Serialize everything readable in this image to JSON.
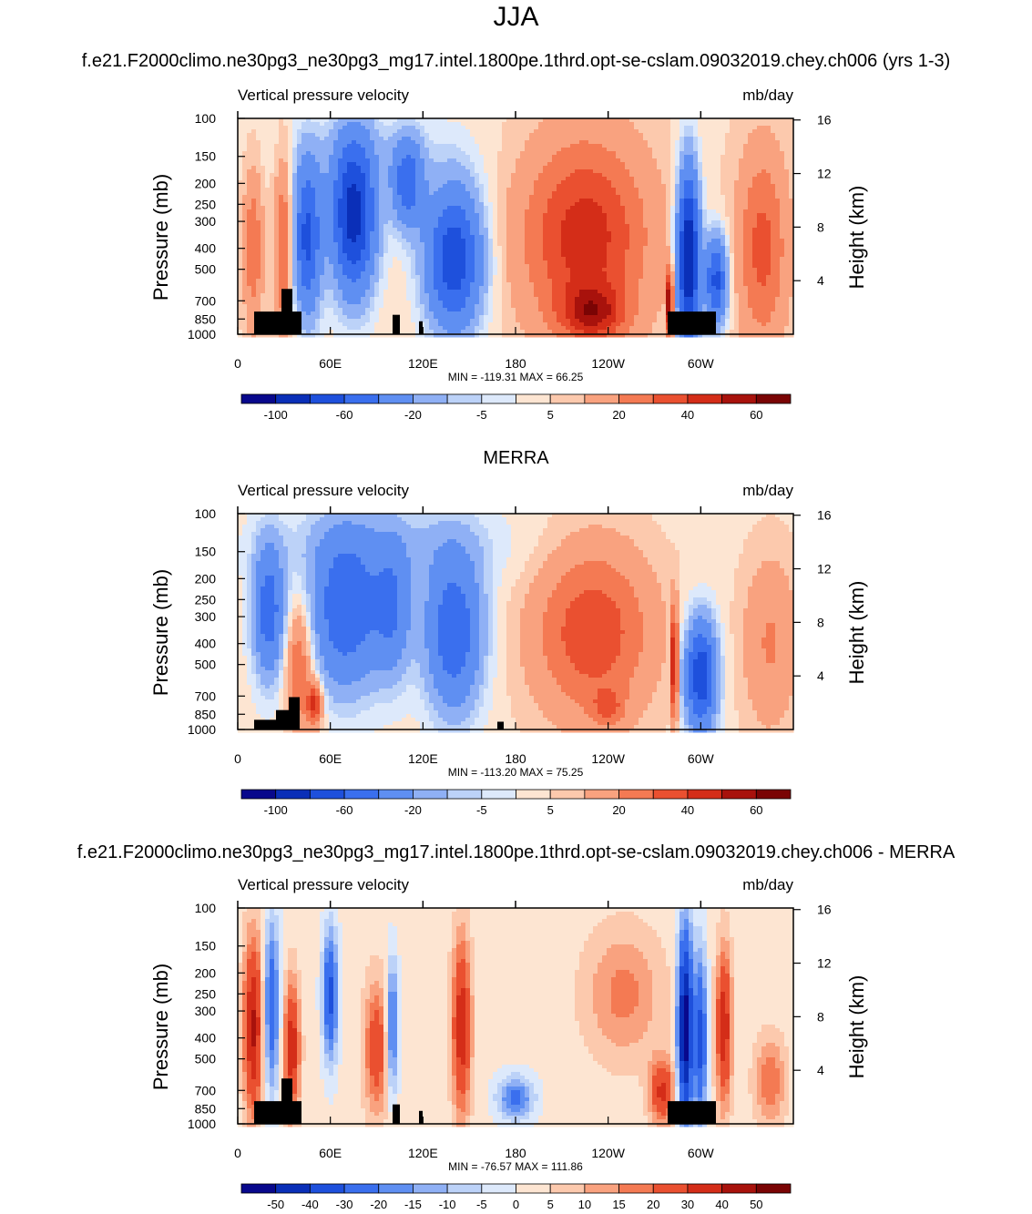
{
  "main_title": "JJA",
  "panel_titles": [
    "f.e21.F2000climo.ne30pg3_ne30pg3_mg17.intel.1800pe.1thrd.opt-se-cslam.09032019.chey.ch006 (yrs 1-3)",
    "MERRA",
    "f.e21.F2000climo.ne30pg3_ne30pg3_mg17.intel.1800pe.1thrd.opt-se-cslam.09032019.chey.ch006 - MERRA"
  ],
  "colors": {
    "model_scale": [
      "#08088c",
      "#0a2fb8",
      "#1e50dc",
      "#3a6fee",
      "#5f8ff2",
      "#8fb0f5",
      "#bcd2f8",
      "#dde9fb",
      "#fde5d2",
      "#fcc9ad",
      "#f9a27f",
      "#f47a53",
      "#ea5030",
      "#d42d18",
      "#a8120c",
      "#7a0404"
    ],
    "diff_scale": [
      "#08088c",
      "#0a2fb8",
      "#1e50dc",
      "#3a6fee",
      "#5f8ff2",
      "#8fb0f5",
      "#bcd2f8",
      "#dde9fb",
      "#fde5d2",
      "#fcc9ad",
      "#f9a27f",
      "#f47a53",
      "#ea5030",
      "#d42d18",
      "#a8120c",
      "#7a0404"
    ]
  },
  "chart_data": [
    {
      "type": "heatmap",
      "title": "f.e21.F2000climo.ne30pg3_ne30pg3_mg17.intel.1800pe.1thrd.opt-se-cslam.09032019.chey.ch006 (yrs 1-3)",
      "left_title": "Vertical pressure velocity",
      "units": "mb/day",
      "ylabel": "Pressure (mb)",
      "y2label": "Height (km)",
      "pressure_ticks": [
        100,
        150,
        200,
        250,
        300,
        400,
        500,
        700,
        850,
        1000
      ],
      "height_ticks": [
        4,
        8,
        12,
        16
      ],
      "x_ticks": [
        "0",
        "60E",
        "120E",
        "180",
        "120W",
        "60W"
      ],
      "xlim_deg": [
        0,
        360
      ],
      "ylim": [
        1000,
        100
      ],
      "y_scale": "log",
      "stats": "MIN = -119.31  MAX =  66.25",
      "colorbar_labels": [
        "-100",
        "-60",
        "-20",
        "-5",
        "5",
        "20",
        "40",
        "60"
      ],
      "colorbar_levels": [
        -120,
        -100,
        -80,
        -60,
        -40,
        -20,
        -10,
        -5,
        0,
        5,
        10,
        20,
        30,
        40,
        50,
        60,
        70
      ],
      "min": -119.31,
      "max": 66.25
    },
    {
      "type": "heatmap",
      "title": "MERRA",
      "left_title": "Vertical pressure velocity",
      "units": "mb/day",
      "ylabel": "Pressure (mb)",
      "y2label": "Height (km)",
      "pressure_ticks": [
        100,
        150,
        200,
        250,
        300,
        400,
        500,
        700,
        850,
        1000
      ],
      "height_ticks": [
        4,
        8,
        12,
        16
      ],
      "x_ticks": [
        "0",
        "60E",
        "120E",
        "180",
        "120W",
        "60W"
      ],
      "xlim_deg": [
        0,
        360
      ],
      "ylim": [
        1000,
        100
      ],
      "y_scale": "log",
      "stats": "MIN = -113.20  MAX =  75.25",
      "colorbar_labels": [
        "-100",
        "-60",
        "-20",
        "-5",
        "5",
        "20",
        "40",
        "60"
      ],
      "colorbar_levels": [
        -120,
        -100,
        -80,
        -60,
        -40,
        -20,
        -10,
        -5,
        0,
        5,
        10,
        20,
        30,
        40,
        50,
        60,
        70
      ],
      "min": -113.2,
      "max": 75.25
    },
    {
      "type": "heatmap",
      "title": "f.e21.F2000climo.ne30pg3_ne30pg3_mg17.intel.1800pe.1thrd.opt-se-cslam.09032019.chey.ch006 - MERRA",
      "left_title": "Vertical pressure velocity",
      "units": "mb/day",
      "ylabel": "Pressure (mb)",
      "y2label": "Height (km)",
      "pressure_ticks": [
        100,
        150,
        200,
        250,
        300,
        400,
        500,
        700,
        850,
        1000
      ],
      "height_ticks": [
        4,
        8,
        12,
        16
      ],
      "x_ticks": [
        "0",
        "60E",
        "120E",
        "180",
        "120W",
        "60W"
      ],
      "xlim_deg": [
        0,
        360
      ],
      "ylim": [
        1000,
        100
      ],
      "y_scale": "log",
      "stats": "MIN = -76.57  MAX = 111.86",
      "colorbar_labels": [
        "-50",
        "-40",
        "-30",
        "-20",
        "-15",
        "-10",
        "-5",
        "0",
        "5",
        "10",
        "15",
        "20",
        "30",
        "40",
        "50"
      ],
      "colorbar_levels": [
        -60,
        -50,
        -40,
        -30,
        -20,
        -15,
        -10,
        -5,
        0,
        5,
        10,
        15,
        20,
        30,
        40,
        50,
        60
      ],
      "min": -76.57,
      "max": 111.86
    }
  ]
}
